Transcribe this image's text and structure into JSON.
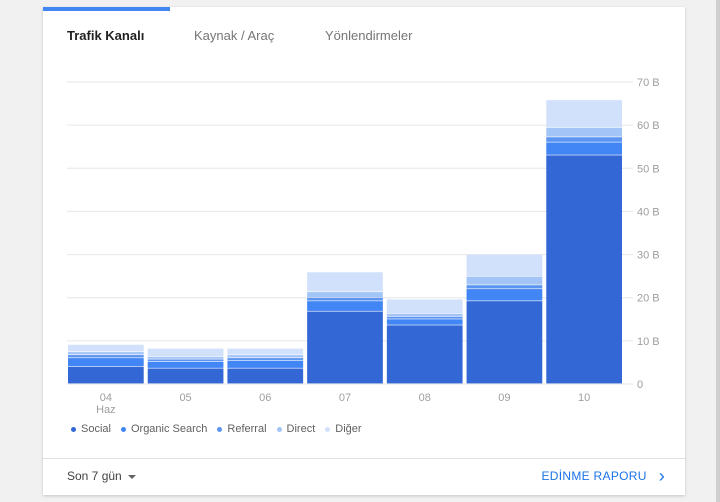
{
  "tabs": [
    {
      "label": "Trafik Kanalı"
    },
    {
      "label": "Kaynak / Araç"
    },
    {
      "label": "Yönlendirmeler"
    }
  ],
  "chart_data": {
    "type": "bar",
    "stacked": true,
    "categories": [
      "04",
      "05",
      "06",
      "07",
      "08",
      "09",
      "10"
    ],
    "first_category_sublabel": "Haz",
    "ylim": [
      0,
      70000
    ],
    "yticks": [
      0,
      10000,
      20000,
      30000,
      40000,
      50000,
      60000,
      70000
    ],
    "ytick_labels": [
      "0",
      "10 B",
      "20 B",
      "30 B",
      "40 B",
      "50 B",
      "60 B",
      "70 B"
    ],
    "grid": true,
    "legend_position": "bottom",
    "series": [
      {
        "name": "Social",
        "color": "#3367d6",
        "values": [
          4000,
          3600,
          3600,
          16800,
          13600,
          19200,
          53000
        ]
      },
      {
        "name": "Organic Search",
        "color": "#4285f4",
        "values": [
          2000,
          1500,
          1800,
          2400,
          1400,
          2800,
          3000
        ]
      },
      {
        "name": "Referral",
        "color": "#5c94f1",
        "values": [
          700,
          600,
          600,
          800,
          600,
          900,
          1200
        ]
      },
      {
        "name": "Direct",
        "color": "#a3c4f7",
        "values": [
          700,
          600,
          700,
          1300,
          700,
          2000,
          2200
        ]
      },
      {
        "name": "Diğer",
        "color": "#d2e1fb",
        "values": [
          1700,
          1900,
          1500,
          4600,
          3300,
          5100,
          6400
        ]
      }
    ]
  },
  "footer": {
    "period_label": "Son 7 gün",
    "report_link": "EDİNME RAPORU"
  }
}
